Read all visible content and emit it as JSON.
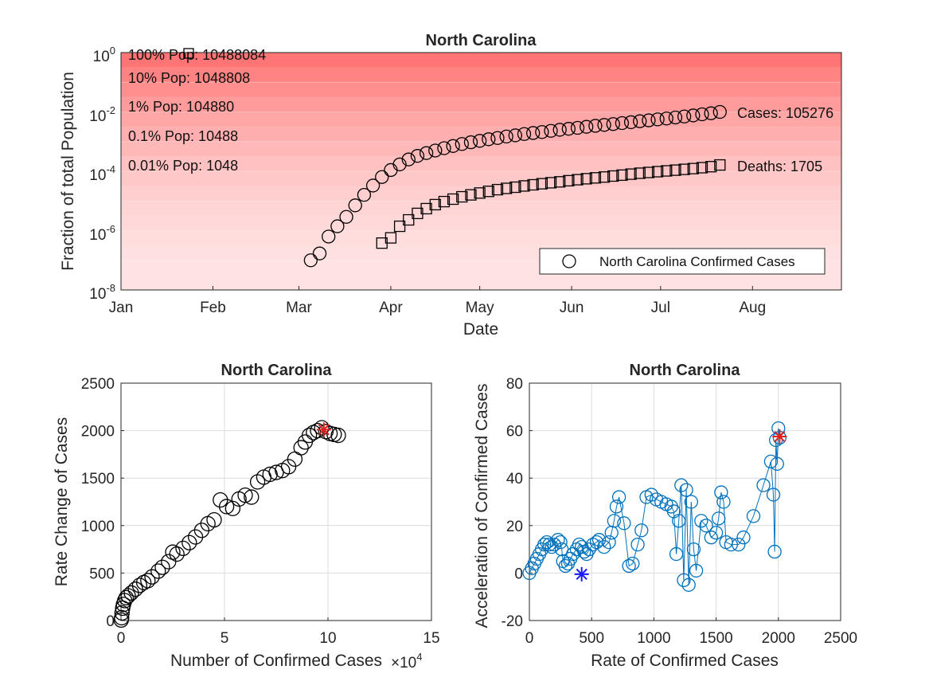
{
  "chart_data": [
    {
      "type": "scatter",
      "title": "North Carolina",
      "xlabel": "Date",
      "ylabel": "Fraction of total Population",
      "yscale": "log",
      "ylim": [
        1e-08,
        1
      ],
      "xlim": [
        "2020-01-01",
        "2020-08-31"
      ],
      "x_tick_labels": [
        "Jan",
        "Feb",
        "Mar",
        "Apr",
        "May",
        "Jun",
        "Jul",
        "Aug"
      ],
      "y_tick_labels": [
        {
          "base": "10",
          "exp": "0"
        },
        {
          "base": "10",
          "exp": "-2"
        },
        {
          "base": "10",
          "exp": "-4"
        },
        {
          "base": "10",
          "exp": "-6"
        },
        {
          "base": "10",
          "exp": "-8"
        }
      ],
      "population_annotations": [
        "100% Pop: 10488084",
        "10% Pop: 1048808",
        "1% Pop: 104880",
        "0.1% Pop: 10488",
        "0.01% Pop: 1048"
      ],
      "legend": {
        "label": "North Carolina Confirmed Cases",
        "location": "bottom-right"
      },
      "end_labels": {
        "cases": "Cases: 105276",
        "deaths": "Deaths: 1705"
      },
      "band_color": "#ff6666",
      "series": [
        {
          "name": "North Carolina Confirmed Cases",
          "marker": "circle",
          "x": [
            "2020-03-05",
            "2020-03-08",
            "2020-03-11",
            "2020-03-14",
            "2020-03-17",
            "2020-03-20",
            "2020-03-23",
            "2020-03-26",
            "2020-03-29",
            "2020-04-01",
            "2020-04-04",
            "2020-04-07",
            "2020-04-10",
            "2020-04-13",
            "2020-04-16",
            "2020-04-19",
            "2020-04-22",
            "2020-04-25",
            "2020-04-28",
            "2020-05-01",
            "2020-05-04",
            "2020-05-07",
            "2020-05-10",
            "2020-05-13",
            "2020-05-16",
            "2020-05-19",
            "2020-05-22",
            "2020-05-25",
            "2020-05-28",
            "2020-05-31",
            "2020-06-03",
            "2020-06-06",
            "2020-06-09",
            "2020-06-12",
            "2020-06-15",
            "2020-06-18",
            "2020-06-21",
            "2020-06-24",
            "2020-06-27",
            "2020-06-30",
            "2020-07-03",
            "2020-07-06",
            "2020-07-09",
            "2020-07-12",
            "2020-07-15",
            "2020-07-18",
            "2020-07-21"
          ],
          "y": [
            1e-07,
            1.7e-07,
            6.3e-07,
            1.4e-06,
            2.9e-06,
            7.1e-06,
            1.6e-05,
            3.3e-05,
            6.4e-05,
            0.00011,
            0.00017,
            0.00025,
            0.00033,
            0.00041,
            0.0005,
            0.0006,
            0.00071,
            0.00083,
            0.00095,
            0.00106,
            0.0012,
            0.00132,
            0.00148,
            0.00162,
            0.0018,
            0.00195,
            0.0021,
            0.0023,
            0.0025,
            0.0027,
            0.0029,
            0.00315,
            0.0034,
            0.00365,
            0.0039,
            0.0042,
            0.0045,
            0.00485,
            0.0052,
            0.0056,
            0.006,
            0.0065,
            0.007,
            0.0076,
            0.0083,
            0.009,
            0.01
          ]
        },
        {
          "name": "Deaths",
          "marker": "square",
          "x": [
            "2020-03-29",
            "2020-04-01",
            "2020-04-04",
            "2020-04-07",
            "2020-04-10",
            "2020-04-13",
            "2020-04-16",
            "2020-04-19",
            "2020-04-22",
            "2020-04-25",
            "2020-04-28",
            "2020-05-01",
            "2020-05-04",
            "2020-05-07",
            "2020-05-10",
            "2020-05-13",
            "2020-05-16",
            "2020-05-19",
            "2020-05-22",
            "2020-05-25",
            "2020-05-28",
            "2020-05-31",
            "2020-06-03",
            "2020-06-06",
            "2020-06-09",
            "2020-06-12",
            "2020-06-15",
            "2020-06-18",
            "2020-06-21",
            "2020-06-24",
            "2020-06-27",
            "2020-06-30",
            "2020-07-03",
            "2020-07-06",
            "2020-07-09",
            "2020-07-12",
            "2020-07-15",
            "2020-07-18",
            "2020-07-21"
          ],
          "y": [
            3.8e-07,
            5.7e-07,
            1.4e-06,
            2.3e-06,
            3.8e-06,
            5.5e-06,
            7.5e-06,
            9.5e-06,
            1.15e-05,
            1.38e-05,
            1.6e-05,
            1.85e-05,
            2.1e-05,
            2.4e-05,
            2.65e-05,
            2.9e-05,
            3.2e-05,
            3.5e-05,
            3.8e-05,
            4.1e-05,
            4.4e-05,
            4.8e-05,
            5.2e-05,
            5.6e-05,
            6e-05,
            6.4e-05,
            6.9e-05,
            7.4e-05,
            8e-05,
            8.6e-05,
            9.1e-05,
            9.7e-05,
            0.000103,
            0.000109,
            0.000116,
            0.000123,
            0.000132,
            0.000143,
            0.000163
          ]
        }
      ]
    },
    {
      "type": "scatter",
      "title": "North Carolina",
      "xlabel": "Number of Confirmed Cases",
      "x_multiplier": {
        "base": "10",
        "exp": "4"
      },
      "ylabel": "Rate Change of Cases",
      "xlim": [
        0,
        15
      ],
      "ylim": [
        0,
        2500
      ],
      "x_tick_labels": [
        "0",
        "5",
        "10",
        "15"
      ],
      "y_tick_labels": [
        "0",
        "500",
        "1000",
        "1500",
        "2000",
        "2500"
      ],
      "grid": true,
      "series": [
        {
          "name": "",
          "marker": "circle",
          "x": [
            0.01,
            0.03,
            0.05,
            0.08,
            0.12,
            0.18,
            0.25,
            0.35,
            0.5,
            0.7,
            0.9,
            1.1,
            1.3,
            1.5,
            1.8,
            2.0,
            2.3,
            2.5,
            2.7,
            3.0,
            3.3,
            3.6,
            3.9,
            4.2,
            4.5,
            4.8,
            5.1,
            5.4,
            5.7,
            6.0,
            6.3,
            6.6,
            6.9,
            7.2,
            7.5,
            7.8,
            8.1,
            8.4,
            8.7,
            8.9,
            9.1,
            9.3,
            9.5,
            9.7,
            9.9,
            10.1,
            10.3,
            10.5
          ],
          "y": [
            5,
            30,
            80,
            130,
            170,
            210,
            240,
            260,
            290,
            330,
            370,
            400,
            420,
            460,
            520,
            560,
            620,
            720,
            700,
            760,
            820,
            880,
            950,
            1020,
            1060,
            1270,
            1200,
            1180,
            1280,
            1320,
            1300,
            1460,
            1510,
            1540,
            1560,
            1580,
            1620,
            1700,
            1820,
            1880,
            1950,
            1980,
            2000,
            2030,
            1990,
            1970,
            1960,
            1950
          ]
        },
        {
          "name": "",
          "marker": "star",
          "color": "#e02020",
          "x": [
            9.8
          ],
          "y": [
            2010
          ]
        }
      ]
    },
    {
      "type": "scatter",
      "title": "North Carolina",
      "xlabel": "Rate of Confirmed Cases",
      "ylabel": "Acceleration of Confirmed Cases",
      "xlim": [
        0,
        2500
      ],
      "ylim": [
        -20,
        80
      ],
      "x_tick_labels": [
        "0",
        "500",
        "1000",
        "1500",
        "2000",
        "2500"
      ],
      "y_tick_labels": [
        "-20",
        "0",
        "20",
        "40",
        "60",
        "80"
      ],
      "grid": true,
      "line_color": "#0072bd",
      "series": [
        {
          "name": "",
          "marker": "circle-line",
          "color": "#0072bd",
          "x": [
            0,
            20,
            40,
            60,
            80,
            100,
            120,
            140,
            160,
            180,
            200,
            230,
            250,
            260,
            270,
            290,
            310,
            330,
            350,
            380,
            400,
            420,
            440,
            460,
            480,
            510,
            540,
            560,
            600,
            640,
            660,
            680,
            700,
            720,
            760,
            800,
            830,
            870,
            900,
            940,
            980,
            1020,
            1060,
            1100,
            1140,
            1160,
            1180,
            1200,
            1220,
            1240,
            1260,
            1280,
            1300,
            1320,
            1340,
            1380,
            1420,
            1460,
            1500,
            1520,
            1540,
            1560,
            1580,
            1620,
            1680,
            1720,
            1800,
            1880,
            1940,
            1960,
            1970,
            1980,
            1990,
            2000,
            2010
          ],
          "y": [
            0,
            2,
            4,
            6,
            8,
            10,
            12,
            13,
            12,
            11,
            12,
            14,
            13,
            10,
            5,
            3,
            4,
            6,
            8,
            10,
            12,
            11,
            9,
            8,
            10,
            12,
            13,
            14,
            11,
            13,
            17,
            22,
            28,
            32,
            21,
            3,
            4,
            12,
            18,
            32,
            33,
            31,
            30,
            29,
            28,
            26,
            8,
            22,
            37,
            -3,
            35,
            -5,
            30,
            10,
            1,
            22,
            20,
            15,
            17,
            23,
            34,
            30,
            13,
            12,
            12,
            15,
            24,
            37,
            47,
            33,
            9,
            56,
            46,
            61,
            57
          ]
        },
        {
          "name": "",
          "marker": "star",
          "color": "#e02020",
          "x": [
            2010
          ],
          "y": [
            57.5
          ]
        },
        {
          "name": "",
          "marker": "star",
          "color": "#1a1aff",
          "x": [
            420
          ],
          "y": [
            -0.5
          ]
        }
      ]
    }
  ]
}
